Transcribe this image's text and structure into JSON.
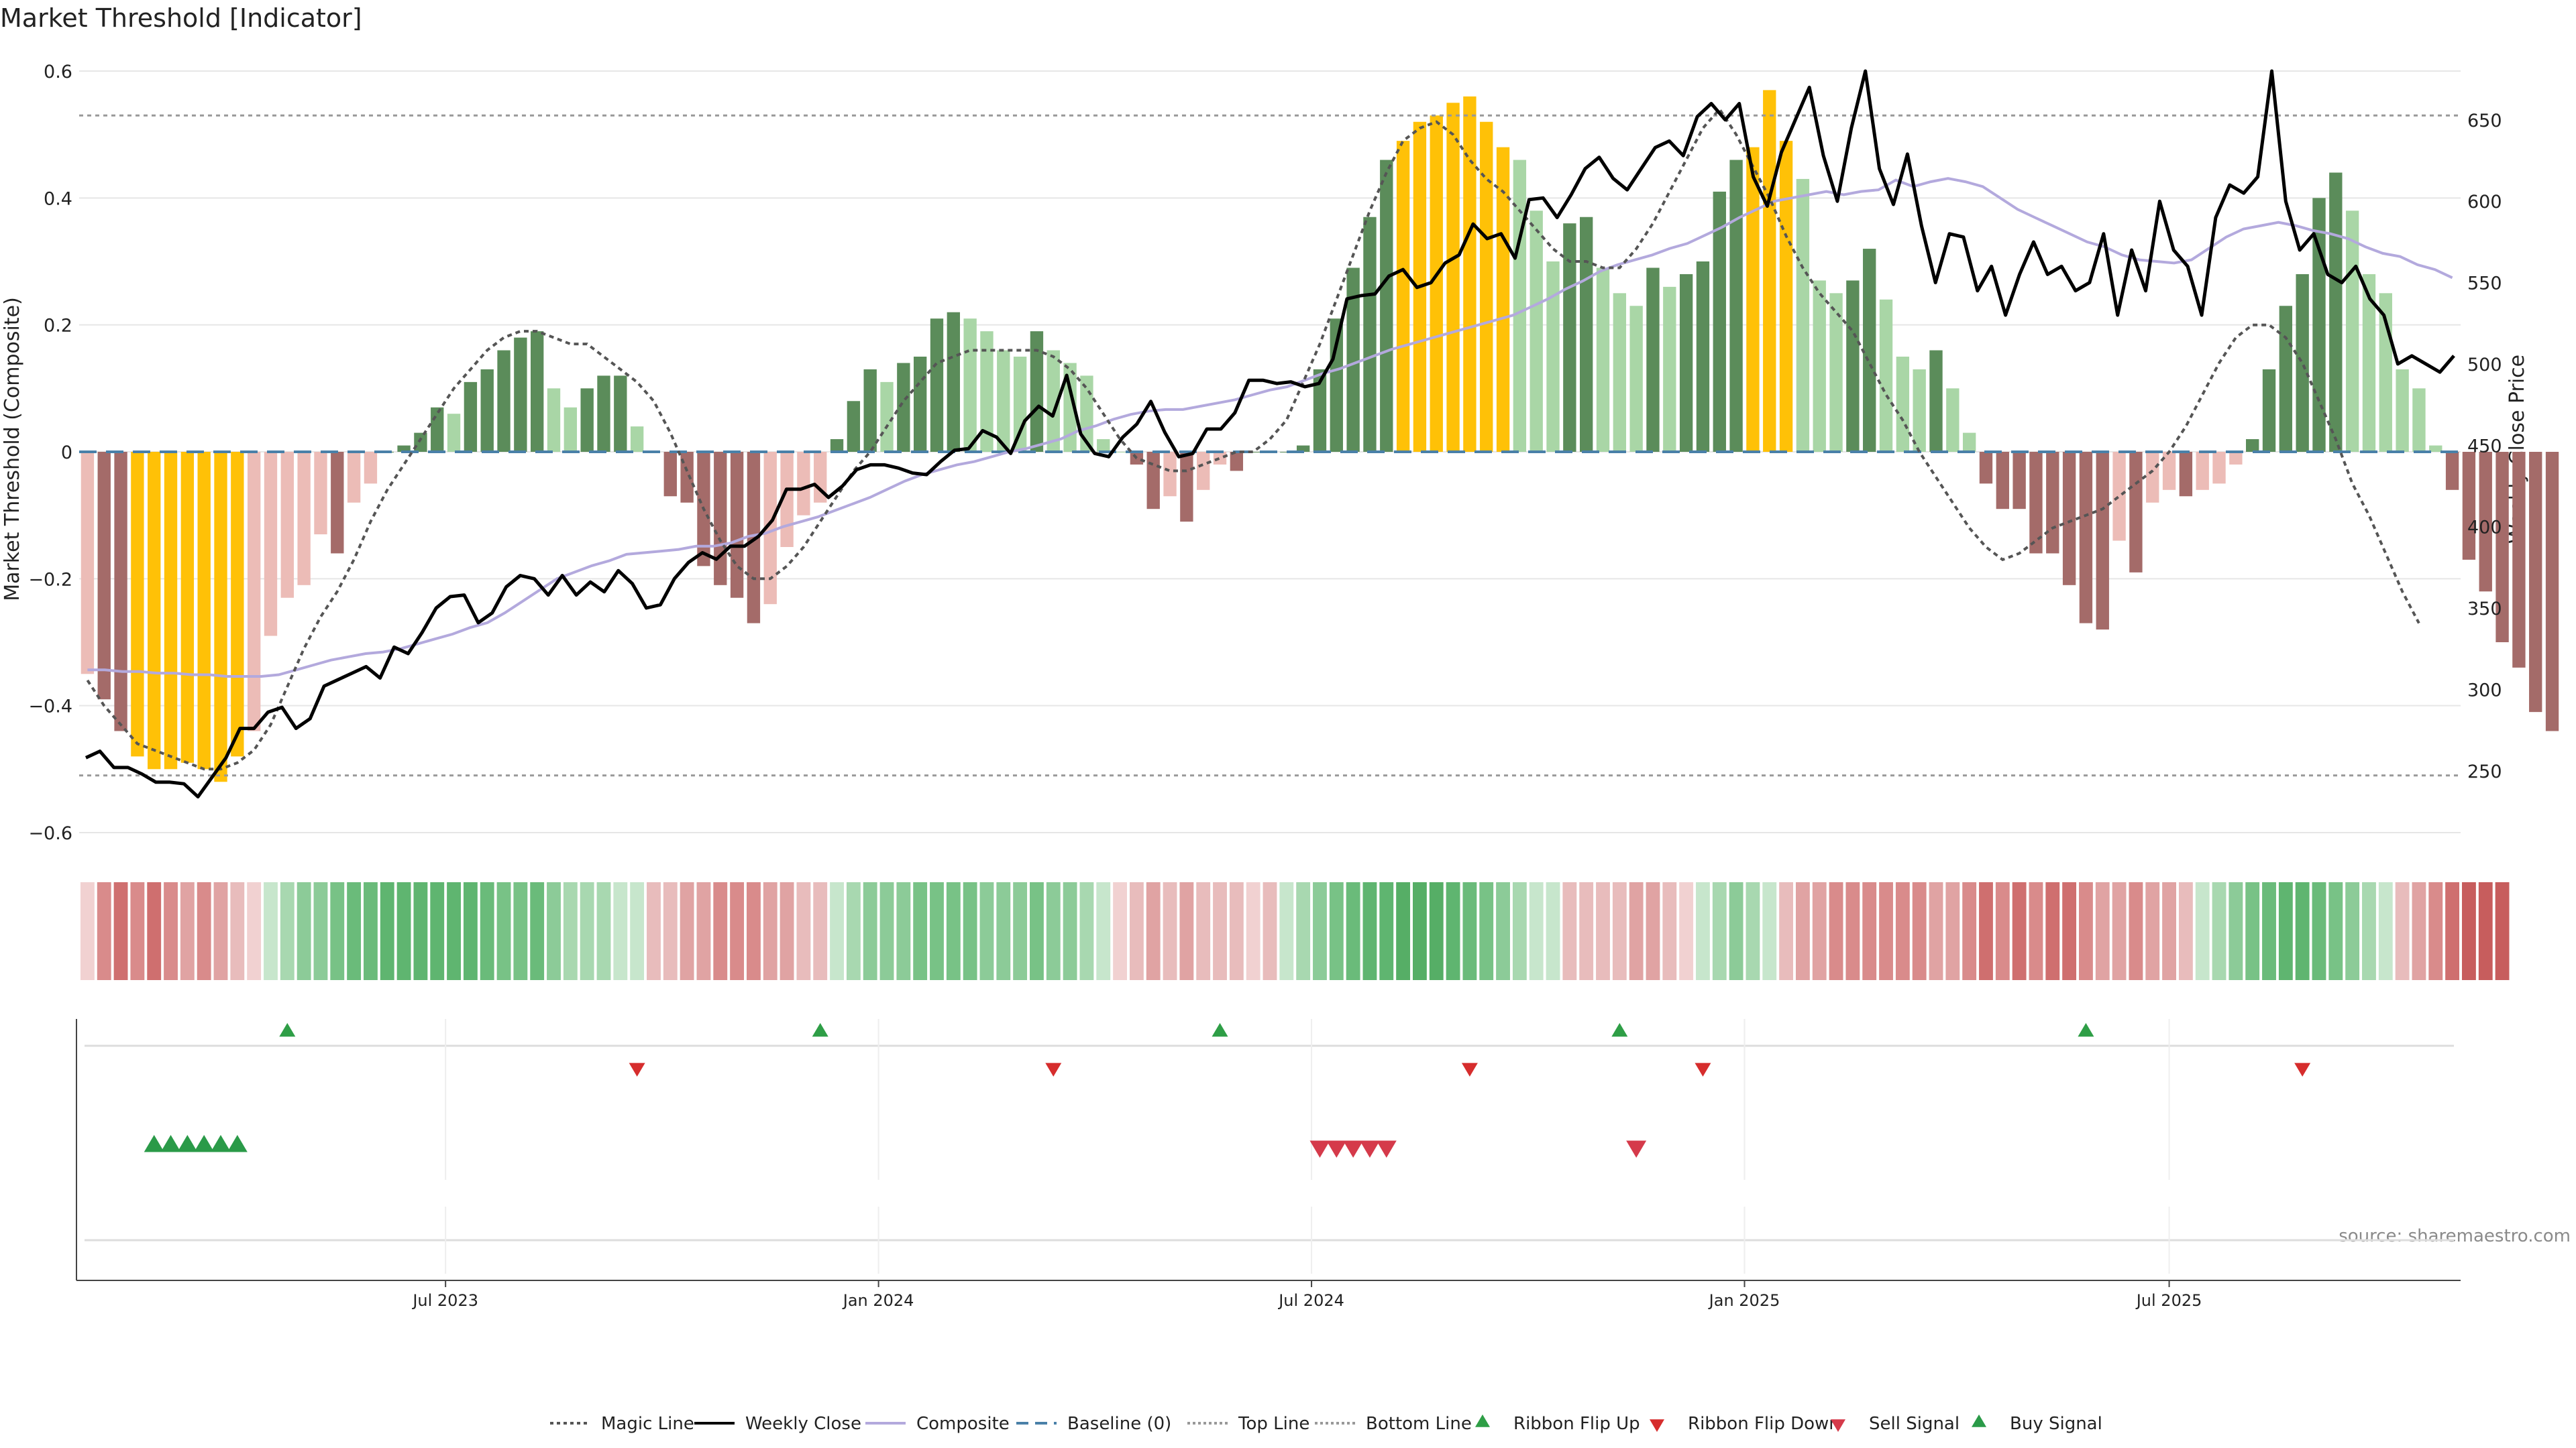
{
  "chart_data": {
    "type": "bar+line",
    "title": "Market Threshold [Indicator]",
    "ylabel_left": "Market Threshold (Composite)",
    "ylabel_right": "Weekly Close Price",
    "ylim_left": [
      -0.6,
      0.6
    ],
    "ylim_right": [
      212,
      680
    ],
    "yticks_left": [
      "0.6",
      "0.4",
      "0.2",
      "0",
      "−0.2",
      "−0.4",
      "−0.6"
    ],
    "yticks_left_values": [
      0.6,
      0.4,
      0.2,
      0,
      -0.2,
      -0.4,
      -0.6
    ],
    "yticks_right": [
      "650",
      "600",
      "550",
      "500",
      "450",
      "400",
      "350",
      "300",
      "250"
    ],
    "yticks_right_values": [
      650,
      600,
      550,
      500,
      450,
      400,
      350,
      300,
      250
    ],
    "xtick_labels": [
      "Jul 2023",
      "Jan 2024",
      "Jul 2024",
      "Jan 2025",
      "Jul 2025"
    ],
    "xtick_positions": [
      21.5,
      47.5,
      73.5,
      99.5,
      125.0
    ],
    "weeks": 143,
    "top_line": 0.53,
    "bottom_line": -0.51,
    "composite_bars": [
      -0.35,
      -0.39,
      -0.44,
      -0.48,
      -0.5,
      -0.5,
      -0.49,
      -0.5,
      -0.52,
      -0.48,
      -0.44,
      -0.29,
      -0.23,
      -0.21,
      -0.13,
      -0.16,
      -0.08,
      -0.05,
      0.0,
      0.01,
      0.03,
      0.07,
      0.06,
      0.11,
      0.13,
      0.16,
      0.18,
      0.19,
      0.1,
      0.07,
      0.1,
      0.12,
      0.12,
      0.04,
      0.0,
      -0.07,
      -0.08,
      -0.18,
      -0.21,
      -0.23,
      -0.27,
      -0.24,
      -0.15,
      -0.1,
      -0.08,
      0.02,
      0.08,
      0.13,
      0.11,
      0.14,
      0.15,
      0.21,
      0.22,
      0.21,
      0.19,
      0.16,
      0.15,
      0.19,
      0.16,
      0.14,
      0.12,
      0.02,
      0.0,
      -0.02,
      -0.09,
      -0.07,
      -0.11,
      -0.06,
      -0.02,
      -0.03,
      0.0,
      0.0,
      0.0,
      0.01,
      0.13,
      0.21,
      0.29,
      0.37,
      0.46,
      0.49,
      0.52,
      0.53,
      0.55,
      0.56,
      0.52,
      0.48,
      0.46,
      0.38,
      0.3,
      0.36,
      0.37,
      0.29,
      0.25,
      0.23,
      0.29,
      0.26,
      0.28,
      0.3,
      0.41,
      0.46,
      0.48,
      0.57,
      0.49,
      0.43,
      0.27,
      0.25,
      0.27,
      0.32,
      0.24,
      0.15,
      0.13,
      0.16,
      0.1,
      0.03,
      -0.05,
      -0.09,
      -0.09,
      -0.16,
      -0.16,
      -0.21,
      -0.27,
      -0.28,
      -0.14,
      -0.19,
      -0.08,
      -0.06,
      -0.07,
      -0.06,
      -0.05,
      -0.02,
      0.02,
      0.13,
      0.23,
      0.28,
      0.4,
      0.44,
      0.38,
      0.28,
      0.25,
      0.13,
      0.1,
      0.01,
      -0.06,
      -0.17,
      -0.22,
      -0.3,
      -0.34,
      -0.41,
      -0.44
    ],
    "weekly_close": [
      258,
      262,
      252,
      252,
      248,
      243,
      243,
      242,
      234,
      246,
      258,
      276,
      276,
      286,
      289,
      276,
      282,
      302,
      306,
      310,
      314,
      307,
      326,
      322,
      335,
      350,
      357,
      358,
      341,
      347,
      363,
      370,
      368,
      358,
      370,
      358,
      366,
      360,
      373,
      365,
      350,
      352,
      368,
      378,
      384,
      380,
      388,
      388,
      394,
      404,
      423,
      423,
      426,
      418,
      425,
      435,
      438,
      438,
      436,
      433,
      432,
      440,
      447,
      448,
      459,
      455,
      445,
      465,
      474,
      468,
      493,
      457,
      445,
      443,
      455,
      463,
      477,
      458,
      443,
      445,
      460,
      460,
      470,
      490,
      490,
      488,
      489,
      486,
      488,
      503,
      540,
      542,
      543,
      554,
      558,
      547,
      550,
      562,
      567,
      586,
      577,
      580,
      565,
      601,
      602,
      590,
      604,
      620,
      627,
      614,
      607,
      620,
      633,
      637,
      628,
      652,
      660,
      650,
      660,
      615,
      597,
      630,
      650,
      670,
      628,
      600,
      645,
      680,
      620,
      598,
      629,
      585,
      550,
      580,
      578,
      545,
      560,
      530,
      555,
      575,
      555,
      560,
      545,
      550,
      580,
      530,
      570,
      545,
      600,
      570,
      560,
      530,
      590,
      610,
      605,
      615,
      680,
      600,
      570,
      580,
      555,
      550,
      560,
      540,
      530,
      500,
      505,
      500,
      495,
      505
    ],
    "weekly_close_x_scale": 0.848,
    "composite_line": [
      312,
      312,
      311,
      311,
      310,
      310,
      309,
      309,
      308,
      308,
      308,
      309,
      312,
      315,
      318,
      320,
      322,
      323,
      325,
      328,
      331,
      334,
      338,
      341,
      347,
      354,
      361,
      368,
      372,
      376,
      379,
      383,
      384,
      385,
      386,
      388,
      388,
      390,
      394,
      396,
      400,
      403,
      406,
      410,
      414,
      418,
      423,
      428,
      432,
      435,
      438,
      440,
      443,
      446,
      448,
      451,
      454,
      459,
      462,
      466,
      469,
      471,
      472,
      472,
      474,
      476,
      478,
      481,
      484,
      486,
      490,
      494,
      497,
      501,
      505,
      509,
      512,
      515,
      518,
      521,
      524,
      527,
      530,
      535,
      540,
      546,
      551,
      557,
      561,
      564,
      567,
      571,
      574,
      579,
      584,
      590,
      595,
      600,
      602,
      604,
      606,
      604,
      606,
      607,
      613,
      609,
      612,
      614,
      612,
      609,
      602,
      595,
      590,
      585,
      580,
      575,
      572,
      567,
      564,
      563,
      562,
      564,
      571,
      578,
      583,
      585,
      587,
      585,
      582,
      580,
      577,
      572,
      568,
      566,
      561,
      558,
      553
    ],
    "magic_line": [
      -0.36,
      -0.4,
      -0.43,
      -0.46,
      -0.47,
      -0.48,
      -0.49,
      -0.5,
      -0.5,
      -0.49,
      -0.47,
      -0.43,
      -0.37,
      -0.31,
      -0.26,
      -0.22,
      -0.17,
      -0.11,
      -0.06,
      -0.02,
      0.02,
      0.06,
      0.1,
      0.13,
      0.16,
      0.18,
      0.19,
      0.19,
      0.18,
      0.17,
      0.17,
      0.15,
      0.13,
      0.11,
      0.08,
      0.03,
      -0.03,
      -0.09,
      -0.14,
      -0.18,
      -0.2,
      -0.2,
      -0.18,
      -0.15,
      -0.11,
      -0.07,
      -0.03,
      0.0,
      0.04,
      0.08,
      0.11,
      0.14,
      0.15,
      0.16,
      0.16,
      0.16,
      0.16,
      0.16,
      0.15,
      0.13,
      0.1,
      0.06,
      0.02,
      -0.01,
      -0.02,
      -0.03,
      -0.03,
      -0.02,
      -0.01,
      0.0,
      0.0,
      0.02,
      0.05,
      0.11,
      0.17,
      0.24,
      0.31,
      0.38,
      0.44,
      0.49,
      0.51,
      0.52,
      0.5,
      0.46,
      0.43,
      0.41,
      0.38,
      0.35,
      0.32,
      0.3,
      0.3,
      0.29,
      0.29,
      0.32,
      0.36,
      0.41,
      0.46,
      0.51,
      0.54,
      0.5,
      0.45,
      0.4,
      0.34,
      0.29,
      0.25,
      0.22,
      0.19,
      0.14,
      0.09,
      0.05,
      0.0,
      -0.04,
      -0.08,
      -0.12,
      -0.15,
      -0.17,
      -0.16,
      -0.14,
      -0.12,
      -0.11,
      -0.1,
      -0.09,
      -0.07,
      -0.05,
      -0.03,
      0.0,
      0.04,
      0.09,
      0.14,
      0.18,
      0.2,
      0.2,
      0.18,
      0.14,
      0.08,
      0.02,
      -0.05,
      -0.1,
      -0.16,
      -0.22,
      -0.27
    ],
    "ribbon_colors": [
      "#f1d1d1",
      "#d98b8b",
      "#cf6f6f",
      "#d98b8b",
      "#cf6f6f",
      "#d98b8b",
      "#e0a3a3",
      "#d98b8b",
      "#e0a3a3",
      "#e8bcbc",
      "#f1d1d1",
      "#c7e6cc",
      "#a8d8b0",
      "#8ccb98",
      "#8ccb98",
      "#78c286",
      "#6abb7a",
      "#6abb7a",
      "#5fb570",
      "#5fb570",
      "#5fb570",
      "#5fb570",
      "#5fb570",
      "#5fb570",
      "#6abb7a",
      "#78c286",
      "#78c286",
      "#6abb7a",
      "#8ccb98",
      "#a8d8b0",
      "#a8d8b0",
      "#a8d8b0",
      "#c7e6cc",
      "#c7e6cc",
      "#e8bcbc",
      "#e8bcbc",
      "#e0a3a3",
      "#e0a3a3",
      "#d98b8b",
      "#d98b8b",
      "#d98b8b",
      "#e0a3a3",
      "#e0a3a3",
      "#e8bcbc",
      "#e8bcbc",
      "#c7e6cc",
      "#a8d8b0",
      "#8ccb98",
      "#8ccb98",
      "#8ccb98",
      "#78c286",
      "#78c286",
      "#78c286",
      "#78c286",
      "#8ccb98",
      "#8ccb98",
      "#8ccb98",
      "#78c286",
      "#8ccb98",
      "#8ccb98",
      "#a8d8b0",
      "#c7e6cc",
      "#f1d1d1",
      "#e8bcbc",
      "#e0a3a3",
      "#e8bcbc",
      "#e0a3a3",
      "#e8bcbc",
      "#e8bcbc",
      "#e8bcbc",
      "#f1d1d1",
      "#e8bcbc",
      "#c7e6cc",
      "#a8d8b0",
      "#8ccb98",
      "#78c286",
      "#6abb7a",
      "#5fb570",
      "#5fb570",
      "#56ae66",
      "#56ae66",
      "#56ae66",
      "#5fb570",
      "#6abb7a",
      "#78c286",
      "#8ccb98",
      "#a8d8b0",
      "#c7e6cc",
      "#c7e6cc",
      "#e8bcbc",
      "#e8bcbc",
      "#e8bcbc",
      "#e8bcbc",
      "#e0a3a3",
      "#e0a3a3",
      "#e8bcbc",
      "#f1d1d1",
      "#c7e6cc",
      "#a8d8b0",
      "#8ccb98",
      "#a8d8b0",
      "#c7e6cc",
      "#e8bcbc",
      "#e0a3a3",
      "#e0a3a3",
      "#d98b8b",
      "#d98b8b",
      "#d98b8b",
      "#d98b8b",
      "#d98b8b",
      "#d98b8b",
      "#e0a3a3",
      "#e0a3a3",
      "#d98b8b",
      "#cf6f6f",
      "#d98b8b",
      "#cf6f6f",
      "#d98b8b",
      "#cf6f6f",
      "#cf6f6f",
      "#d98b8b",
      "#e0a3a3",
      "#e0a3a3",
      "#d98b8b",
      "#e0a3a3",
      "#e0a3a3",
      "#e8bcbc",
      "#c7e6cc",
      "#a8d8b0",
      "#8ccb98",
      "#78c286",
      "#6abb7a",
      "#5fb570",
      "#5fb570",
      "#6abb7a",
      "#78c286",
      "#8ccb98",
      "#a8d8b0",
      "#c7e6cc",
      "#e8bcbc",
      "#e0a3a3",
      "#d98b8b",
      "#cf6f6f",
      "#c75d5d",
      "#c75d5d",
      "#c75d5d"
    ],
    "ribbon_flip_up_weeks": [
      12,
      44,
      68,
      92,
      120
    ],
    "ribbon_flip_down_weeks": [
      33,
      58,
      83,
      97,
      133
    ],
    "buy_signal_weeks": [
      4,
      5,
      6,
      7,
      8,
      9
    ],
    "sell_signal_weeks": [
      74,
      75,
      76,
      77,
      78,
      93
    ],
    "legend": [
      "Magic Line",
      "Weekly Close",
      "Composite",
      "Baseline (0)",
      "Top Line",
      "Bottom Line",
      "Ribbon Flip Up",
      "Ribbon Flip Down",
      "Sell Signal",
      "Buy Signal"
    ],
    "source": "source: sharemaestro.com",
    "colors": {
      "bull_strong": "#5b8c5a",
      "bull_weak": "#a9d6a6",
      "bear_strong": "#a46b69",
      "bear_weak": "#ecbcb7",
      "extreme": "#ffc107",
      "magic_line": "#555555",
      "weekly_close": "#000000",
      "composite": "#b3a9dd",
      "baseline": "#4a80a8",
      "ref_lines": "#999999",
      "flip_up": "#2e9e46",
      "flip_down": "#d62d2d",
      "grid": "#e6e6e6"
    }
  }
}
